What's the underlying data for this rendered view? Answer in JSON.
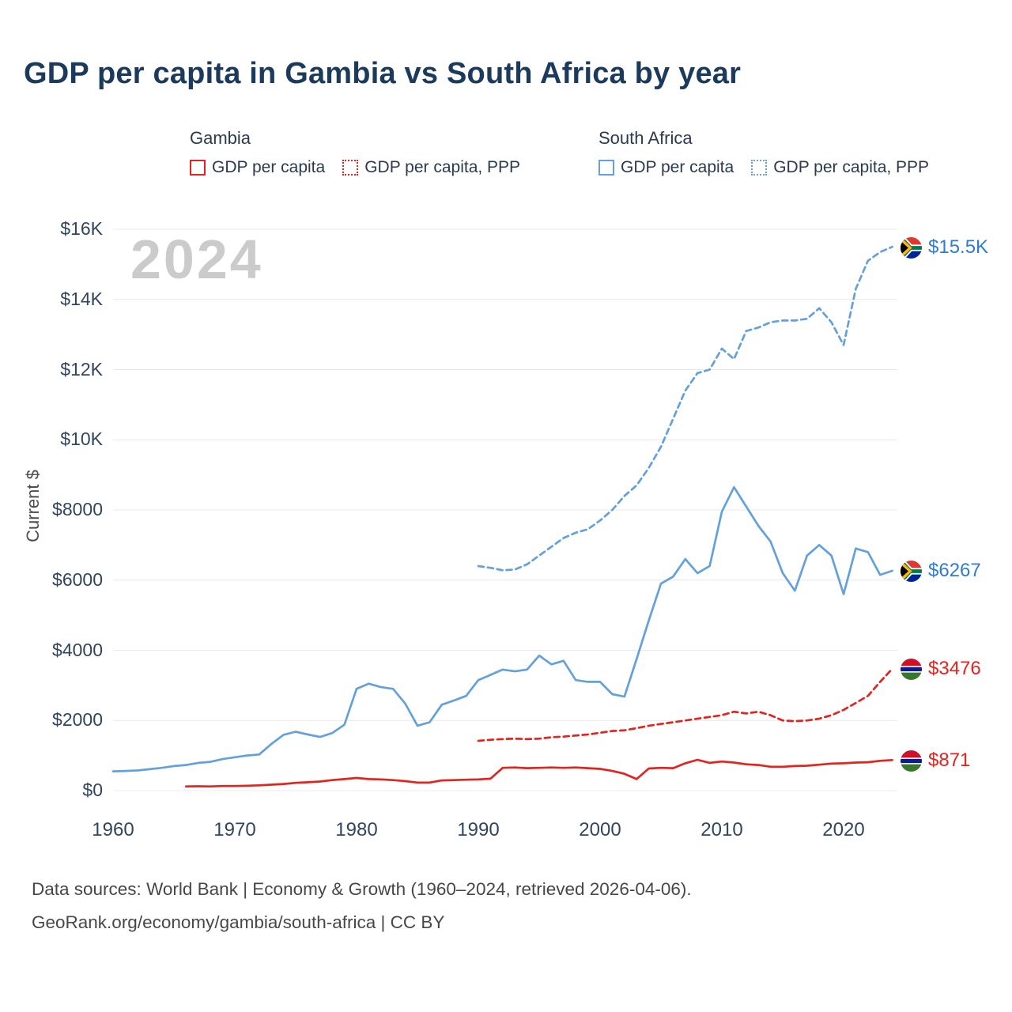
{
  "title": "GDP per capita in Gambia vs South Africa by year",
  "watermark": "2024",
  "y_axis_label": "Current $",
  "colors": {
    "gambia": "#e3231e",
    "south_africa": "#64a0dc",
    "gambia_label": "#e3231e",
    "south_africa_label": "#2e7dd1",
    "title": "#1c3a5c",
    "grid": "#e9e9e9",
    "watermark": "#cbcbcb"
  },
  "legend": {
    "groups": [
      {
        "name": "Gambia",
        "items": [
          {
            "label": "GDP per capita",
            "style": "solid",
            "color": "#e3231e"
          },
          {
            "label": "GDP per capita, PPP",
            "style": "dotted",
            "color": "#e3231e"
          }
        ]
      },
      {
        "name": "South Africa",
        "items": [
          {
            "label": "GDP per capita",
            "style": "solid",
            "color": "#64a0dc"
          },
          {
            "label": "GDP per capita, PPP",
            "style": "dotted",
            "color": "#64a0dc"
          }
        ]
      }
    ]
  },
  "end_labels": [
    {
      "series": "South Africa GDP per capita, PPP",
      "value": "$15.5K",
      "flag": "south-africa",
      "color": "#2e7dd1"
    },
    {
      "series": "South Africa GDP per capita",
      "value": "$6267",
      "flag": "south-africa",
      "color": "#2e7dd1"
    },
    {
      "series": "Gambia GDP per capita, PPP",
      "value": "$3476",
      "flag": "gambia",
      "color": "#e3231e"
    },
    {
      "series": "Gambia GDP per capita",
      "value": "$871",
      "flag": "gambia",
      "color": "#e3231e"
    }
  ],
  "footer": {
    "line1": "Data sources: World Bank | Economy & Growth (1960–2024, retrieved 2026-04-06).",
    "line2": "GeoRank.org/economy/gambia/south-africa | CC BY"
  },
  "chart_data": {
    "type": "line",
    "title": "GDP per capita in Gambia vs South Africa by year",
    "xlabel": "",
    "ylabel": "Current $",
    "xlim": [
      1958,
      2026
    ],
    "ylim": [
      0,
      16000
    ],
    "grid": "horizontal",
    "legend_position": "top",
    "x_ticks": [
      1960,
      1970,
      1980,
      1990,
      2000,
      2010,
      2020
    ],
    "y_ticks": [
      {
        "label": "$0",
        "value": 0
      },
      {
        "label": "$2000",
        "value": 2000
      },
      {
        "label": "$4000",
        "value": 4000
      },
      {
        "label": "$6000",
        "value": 6000
      },
      {
        "label": "$8000",
        "value": 8000
      },
      {
        "label": "$10K",
        "value": 10000
      },
      {
        "label": "$12K",
        "value": 12000
      },
      {
        "label": "$14K",
        "value": 14000
      },
      {
        "label": "$16K",
        "value": 16000
      }
    ],
    "series": [
      {
        "id": "za-ppp",
        "name": "South Africa GDP per capita, PPP",
        "color": "#64a0dc",
        "dash": true,
        "start_year": 1990,
        "values": [
          6400,
          6350,
          6280,
          6300,
          6450,
          6700,
          6950,
          7200,
          7350,
          7450,
          7700,
          8000,
          8400,
          8700,
          9200,
          9800,
          10600,
          11400,
          11900,
          12000,
          12600,
          12300,
          13100,
          13200,
          13350,
          13400,
          13400,
          13450,
          13750,
          13350,
          12700,
          14300,
          15100,
          15350,
          15500
        ]
      },
      {
        "id": "za-gdp",
        "name": "South Africa GDP per capita",
        "color": "#64a0dc",
        "dash": false,
        "start_year": 1960,
        "values": [
          550,
          560,
          575,
          610,
          650,
          700,
          730,
          790,
          820,
          900,
          950,
          1000,
          1030,
          1330,
          1590,
          1680,
          1600,
          1530,
          1640,
          1880,
          2900,
          3050,
          2950,
          2900,
          2480,
          1850,
          1950,
          2450,
          2570,
          2700,
          3150,
          3300,
          3450,
          3400,
          3450,
          3850,
          3600,
          3700,
          3150,
          3100,
          3100,
          2750,
          2680,
          3750,
          4850,
          5900,
          6100,
          6600,
          6200,
          6400,
          7950,
          8650,
          8100,
          7550,
          7100,
          6200,
          5700,
          6700,
          7000,
          6700,
          5600,
          6900,
          6800,
          6150,
          6267
        ]
      },
      {
        "id": "gm-ppp",
        "name": "Gambia GDP per capita, PPP",
        "color": "#e3231e",
        "dash": true,
        "start_year": 1990,
        "values": [
          1420,
          1450,
          1470,
          1480,
          1470,
          1480,
          1520,
          1540,
          1570,
          1600,
          1650,
          1700,
          1720,
          1780,
          1850,
          1900,
          1950,
          2000,
          2050,
          2100,
          2150,
          2250,
          2200,
          2250,
          2150,
          2000,
          1980,
          2000,
          2050,
          2150,
          2300,
          2500,
          2700,
          3100,
          3476
        ]
      },
      {
        "id": "gm-gdp",
        "name": "Gambia GDP per capita",
        "color": "#e3231e",
        "dash": false,
        "start_year": 1966,
        "values": [
          120,
          125,
          120,
          130,
          130,
          140,
          150,
          170,
          190,
          220,
          240,
          260,
          300,
          330,
          360,
          330,
          320,
          300,
          270,
          230,
          230,
          290,
          300,
          310,
          320,
          340,
          650,
          660,
          640,
          650,
          660,
          650,
          660,
          640,
          620,
          560,
          480,
          330,
          630,
          650,
          640,
          780,
          880,
          790,
          830,
          800,
          750,
          730,
          680,
          680,
          700,
          710,
          740,
          770,
          780,
          800,
          810,
          850,
          871
        ]
      }
    ]
  }
}
